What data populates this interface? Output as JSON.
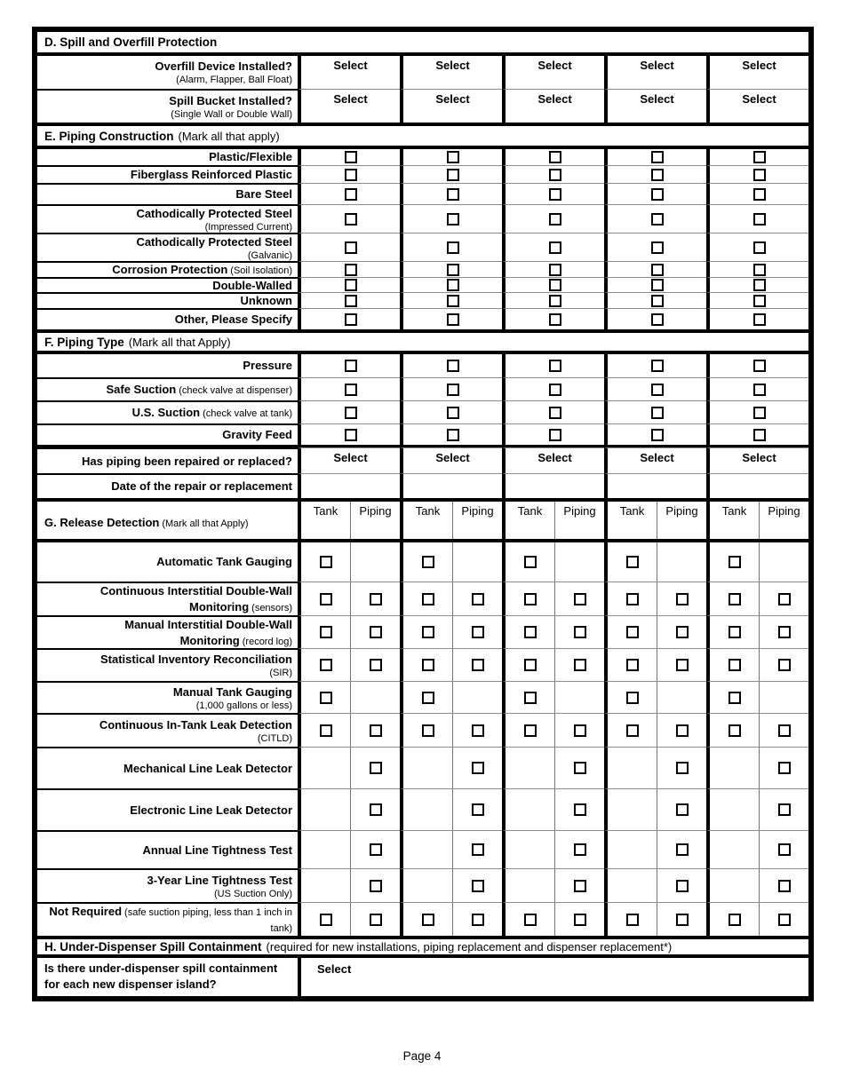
{
  "footer": "Page 4",
  "num_columns": 5,
  "ui": {
    "select_label": "Select"
  },
  "colors": {
    "border": "#000000",
    "grid_light": "#8c8c8c",
    "background": "#ffffff"
  },
  "section_d": {
    "title": "D. Spill and Overfill Protection",
    "rows": [
      {
        "label": "Overfill Device Installed?",
        "sublabel": "(Alarm, Flapper, Ball Float)"
      },
      {
        "label": "Spill Bucket Installed?",
        "sublabel": "(Single Wall or Double Wall)"
      }
    ]
  },
  "section_e": {
    "title": "E. Piping Construction",
    "note": "(Mark all that apply)",
    "rows": [
      {
        "label": "Plastic/Flexible"
      },
      {
        "label": "Fiberglass Reinforced Plastic"
      },
      {
        "label": "Bare Steel"
      },
      {
        "label": "Cathodically Protected Steel",
        "sublabel": "(Impressed Current)"
      },
      {
        "label": "Cathodically Protected Steel",
        "sublabel": "(Galvanic)"
      },
      {
        "label": "Corrosion Protection",
        "note": "(Soil Isolation)"
      },
      {
        "label": "Double-Walled"
      },
      {
        "label": "Unknown"
      },
      {
        "label": "Other, Please Specify"
      }
    ]
  },
  "section_f": {
    "title": "F. Piping Type",
    "note": "(Mark all that Apply)",
    "rows": [
      {
        "label": "Pressure"
      },
      {
        "label": "Safe Suction",
        "note": "(check valve at dispenser)"
      },
      {
        "label": "U.S. Suction",
        "note": "(check valve at tank)"
      },
      {
        "label": "Gravity Feed"
      }
    ],
    "repaired_row": {
      "label": "Has piping been repaired or replaced?"
    },
    "date_row": {
      "label": "Date of the repair or replacement"
    }
  },
  "section_g": {
    "title": "G. Release Detection",
    "note": "(Mark all that Apply)",
    "columns": [
      "Tank",
      "Piping"
    ],
    "rows": [
      {
        "label": "Automatic Tank Gauging",
        "checks": "tank"
      },
      {
        "label": "Continuous Interstitial Double-Wall Monitoring",
        "note": "(sensors)",
        "checks": "both"
      },
      {
        "label": "Manual Interstitial Double-Wall Monitoring",
        "note": "(record log)",
        "checks": "both"
      },
      {
        "label": "Statistical Inventory Reconciliation",
        "sublabel": "(SIR)",
        "checks": "both"
      },
      {
        "label": "Manual Tank Gauging",
        "sublabel": "(1,000 gallons or less)",
        "checks": "tank"
      },
      {
        "label": "Continuous In-Tank Leak Detection",
        "sublabel": "(CITLD)",
        "checks": "both"
      },
      {
        "label": "Mechanical Line Leak Detector",
        "checks": "piping"
      },
      {
        "label": "Electronic Line Leak Detector",
        "checks": "piping"
      },
      {
        "label": "Annual Line Tightness Test",
        "checks": "piping"
      },
      {
        "label": "3-Year Line Tightness Test",
        "sublabel": "(US Suction Only)",
        "checks": "piping"
      },
      {
        "label": "Not Required",
        "note": "(safe suction piping, less than 1 inch in tank)",
        "checks": "both"
      }
    ]
  },
  "section_h": {
    "title": "H. Under-Dispenser Spill Containment",
    "note": "(required for new installations, piping replacement and dispenser replacement*)",
    "row": {
      "label": "Is there under-dispenser spill containment for each new dispenser island?"
    }
  }
}
